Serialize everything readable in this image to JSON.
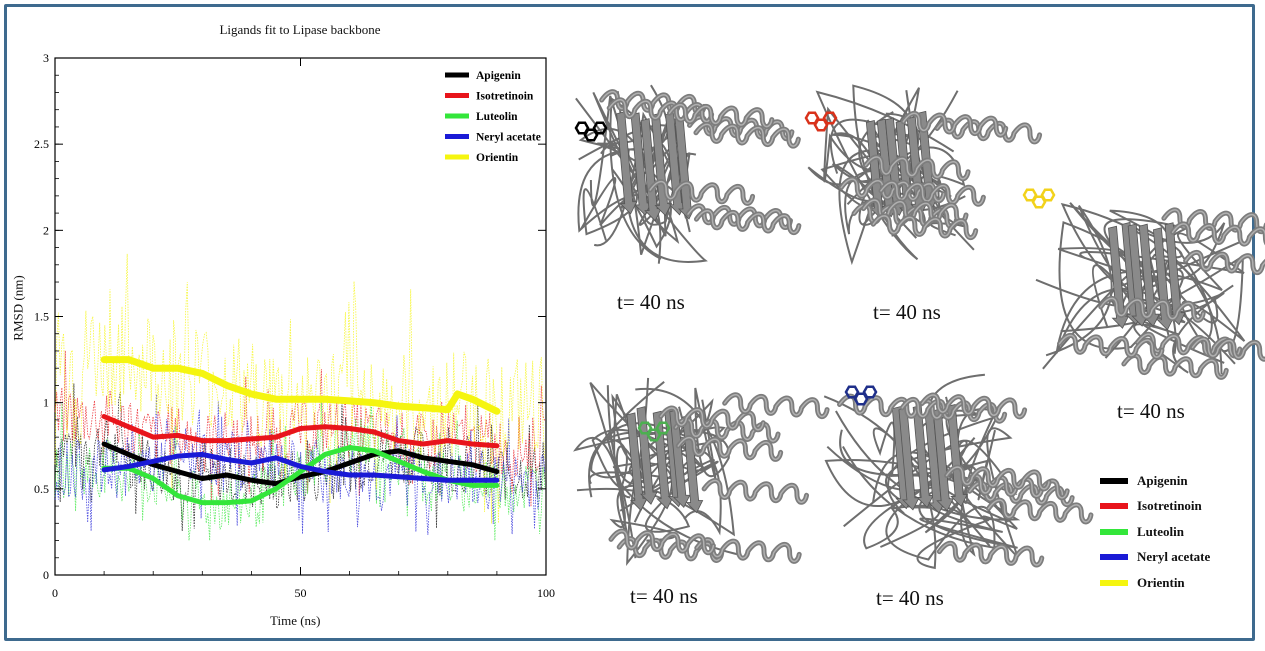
{
  "chart_data": {
    "type": "line",
    "title": "Ligands fit to Lipase backbone",
    "xlabel": "Time (ns)",
    "ylabel": "RMSD (nm)",
    "xlim": [
      0,
      100
    ],
    "ylim": [
      0,
      3
    ],
    "xticks": [
      "0",
      "50",
      "100"
    ],
    "yticks": [
      "0",
      "0.5",
      "1",
      "1.5",
      "2",
      "2.5",
      "3"
    ],
    "legend_position": "top-right",
    "series": [
      {
        "name": "Apigenin",
        "color": "#000000",
        "x": [
          10,
          15,
          20,
          25,
          30,
          35,
          40,
          45,
          50,
          55,
          60,
          65,
          70,
          75,
          80,
          85,
          90
        ],
        "y": [
          0.76,
          0.7,
          0.64,
          0.6,
          0.56,
          0.58,
          0.55,
          0.53,
          0.57,
          0.6,
          0.65,
          0.7,
          0.72,
          0.68,
          0.66,
          0.64,
          0.6
        ]
      },
      {
        "name": "Isotretinoin",
        "color": "#e8141b",
        "x": [
          10,
          15,
          20,
          25,
          30,
          35,
          40,
          45,
          50,
          55,
          60,
          65,
          70,
          75,
          80,
          85,
          90
        ],
        "y": [
          0.92,
          0.86,
          0.8,
          0.81,
          0.78,
          0.78,
          0.79,
          0.8,
          0.85,
          0.86,
          0.85,
          0.83,
          0.78,
          0.76,
          0.78,
          0.76,
          0.75
        ]
      },
      {
        "name": "Luteolin",
        "color": "#33e63a",
        "x": [
          10,
          15,
          20,
          25,
          30,
          35,
          40,
          45,
          50,
          55,
          60,
          65,
          70,
          75,
          80,
          85,
          90
        ],
        "y": [
          0.62,
          0.62,
          0.56,
          0.46,
          0.42,
          0.42,
          0.43,
          0.5,
          0.6,
          0.7,
          0.74,
          0.72,
          0.66,
          0.6,
          0.55,
          0.52,
          0.52
        ]
      },
      {
        "name": "Neryl acetate",
        "color": "#1a1ad6",
        "x": [
          10,
          15,
          20,
          25,
          30,
          35,
          40,
          45,
          50,
          55,
          60,
          65,
          70,
          75,
          80,
          85,
          90
        ],
        "y": [
          0.61,
          0.63,
          0.66,
          0.69,
          0.7,
          0.67,
          0.65,
          0.68,
          0.63,
          0.6,
          0.58,
          0.58,
          0.57,
          0.56,
          0.55,
          0.55,
          0.55
        ]
      },
      {
        "name": "Orientin",
        "color": "#f5f50f",
        "x": [
          10,
          15,
          20,
          25,
          30,
          35,
          40,
          45,
          50,
          55,
          60,
          65,
          70,
          75,
          80,
          82,
          85,
          90
        ],
        "y": [
          1.25,
          1.25,
          1.2,
          1.2,
          1.17,
          1.1,
          1.05,
          1.02,
          1.02,
          1.02,
          1.01,
          1.0,
          0.98,
          0.97,
          0.96,
          1.05,
          1.02,
          0.95
        ]
      }
    ]
  },
  "images": [
    {
      "label": "t= 40 ns",
      "ligand_color": "#000000"
    },
    {
      "label": "t= 40 ns",
      "ligand_color": "#d9321b"
    },
    {
      "label": "t= 40 ns",
      "ligand_color": "#f2d21b"
    },
    {
      "label": "t= 40 ns",
      "ligand_color": "#4caf50"
    },
    {
      "label": "t= 40 ns",
      "ligand_color": "#1f2f8a"
    }
  ],
  "legend_right": [
    {
      "name": "Apigenin",
      "color": "#000000"
    },
    {
      "name": "Isotretinoin",
      "color": "#e8141b"
    },
    {
      "name": "Luteolin",
      "color": "#33e63a"
    },
    {
      "name": "Neryl acetate",
      "color": "#1a1ad6"
    },
    {
      "name": "Orientin",
      "color": "#f5f50f"
    }
  ]
}
